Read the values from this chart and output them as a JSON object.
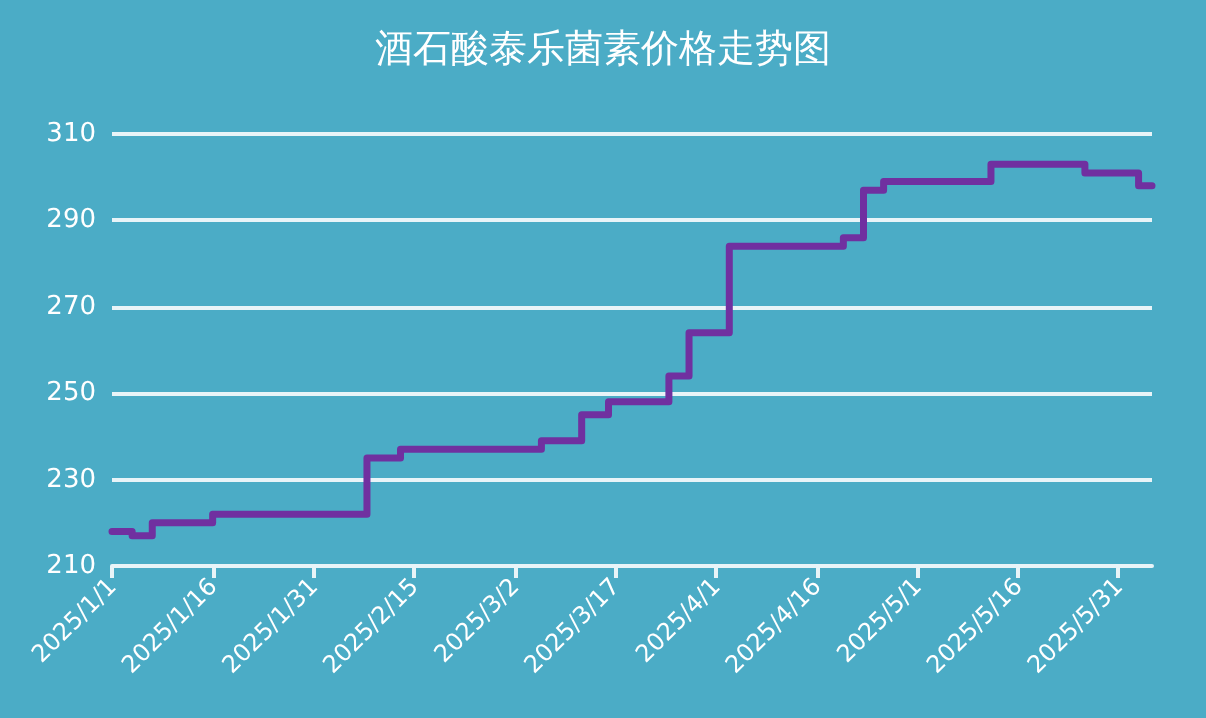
{
  "chart_data": {
    "type": "step",
    "title": "酒石酸泰乐菌素价格走势图",
    "x": [
      "2025-01-01",
      "2025-01-04",
      "2025-01-07",
      "2025-01-16",
      "2025-02-08",
      "2025-02-13",
      "2025-03-06",
      "2025-03-12",
      "2025-03-16",
      "2025-03-25",
      "2025-03-28",
      "2025-04-03",
      "2025-04-20",
      "2025-04-23",
      "2025-04-26",
      "2025-05-12",
      "2025-05-26",
      "2025-06-03",
      "2025-06-05"
    ],
    "series": [
      {
        "color": "#7030a0",
        "values": [
          218,
          217,
          220,
          222,
          235,
          237,
          239,
          245,
          248,
          254,
          264,
          284,
          286,
          297,
          299,
          303,
          301,
          298,
          298
        ]
      }
    ],
    "xlim": [
      "2025-01-01",
      "2025-06-05"
    ],
    "xticks": [
      {
        "value": "2025-01-01",
        "label": "2025/1/1"
      },
      {
        "value": "2025-01-16",
        "label": "2025/1/16"
      },
      {
        "value": "2025-01-31",
        "label": "2025/1/31"
      },
      {
        "value": "2025-02-15",
        "label": "2025/2/15"
      },
      {
        "value": "2025-03-02",
        "label": "2025/3/2"
      },
      {
        "value": "2025-03-17",
        "label": "2025/3/17"
      },
      {
        "value": "2025-04-01",
        "label": "2025/4/1"
      },
      {
        "value": "2025-04-16",
        "label": "2025/4/16"
      },
      {
        "value": "2025-05-01",
        "label": "2025/5/1"
      },
      {
        "value": "2025-05-16",
        "label": "2025/5/16"
      },
      {
        "value": "2025-05-31",
        "label": "2025/5/31"
      }
    ],
    "ylim": [
      210,
      310
    ],
    "yticks": [
      210,
      230,
      250,
      270,
      290,
      310
    ],
    "grid": "y",
    "marker": "none",
    "line_style": "solid"
  }
}
